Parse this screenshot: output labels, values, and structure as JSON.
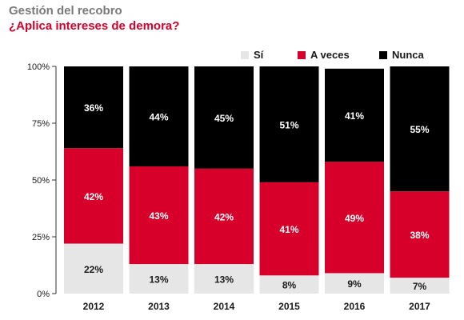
{
  "header": {
    "title": "Gestión del recobro",
    "subtitle": "¿Aplica intereses de demora?"
  },
  "colors": {
    "si": "#e6e6e6",
    "a_veces": "#d6002a",
    "nunca": "#000000",
    "title": "#7a7a7a",
    "subtitle": "#d6002a"
  },
  "chart_data": {
    "type": "bar",
    "stacked": true,
    "title": "¿Aplica intereses de demora?",
    "xlabel": "",
    "ylabel": "",
    "ylim": [
      0,
      100
    ],
    "yticks": [
      "0%",
      "25%",
      "50%",
      "75%",
      "100%"
    ],
    "grid": false,
    "legend_position": "top-right",
    "categories": [
      "2012",
      "2013",
      "2014",
      "2015",
      "2016",
      "2017"
    ],
    "series": [
      {
        "name": "Sí",
        "color": "#e6e6e6",
        "label_color": "#1a1a1a",
        "values": [
          22,
          13,
          13,
          8,
          9,
          7
        ],
        "labels": [
          "22%",
          "13%",
          "13%",
          "8%",
          "9%",
          "7%"
        ]
      },
      {
        "name": "A veces",
        "color": "#d6002a",
        "label_color": "#ffffff",
        "values": [
          42,
          43,
          42,
          41,
          49,
          38
        ],
        "labels": [
          "42%",
          "43%",
          "42%",
          "41%",
          "49%",
          "38%"
        ]
      },
      {
        "name": "Nunca",
        "color": "#000000",
        "label_color": "#ffffff",
        "values": [
          36,
          44,
          45,
          51,
          41,
          55
        ],
        "labels": [
          "36%",
          "44%",
          "45%",
          "51%",
          "41%",
          "55%"
        ]
      }
    ]
  }
}
